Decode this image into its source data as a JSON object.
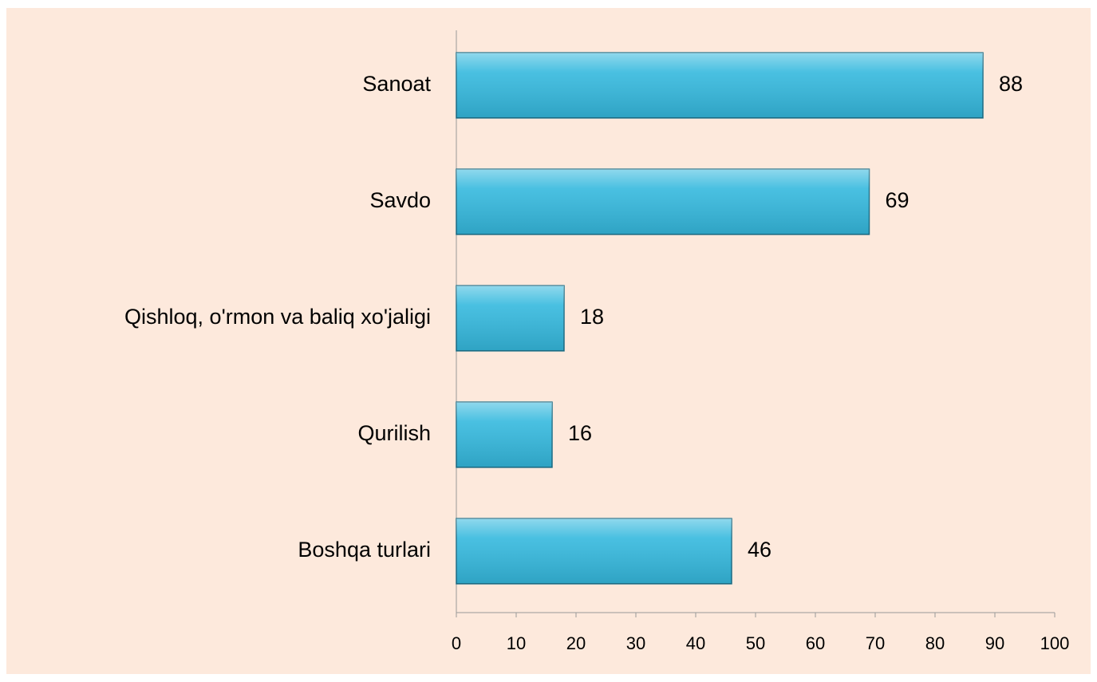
{
  "chart_data": {
    "type": "bar",
    "orientation": "horizontal",
    "categories": [
      "Sanoat",
      "Savdo",
      "Qishloq, o'rmon va baliq xo'jaligi",
      "Qurilish",
      "Boshqa turlari"
    ],
    "values": [
      88,
      69,
      18,
      16,
      46
    ],
    "color": "#35b9de",
    "xlim": [
      0,
      100
    ],
    "xticks": [
      0,
      10,
      20,
      30,
      40,
      50,
      60,
      70,
      80,
      90,
      100
    ],
    "grid": false
  }
}
